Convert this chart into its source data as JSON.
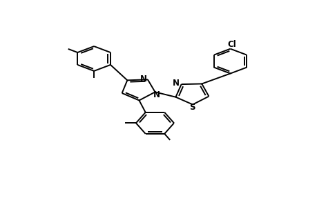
{
  "figsize": [
    4.6,
    3.0
  ],
  "dpi": 100,
  "bg_color": "#ffffff",
  "line_color": "#000000",
  "line_width": 1.4,
  "font_size": 8.5,
  "xlim": [
    0,
    10
  ],
  "ylim": [
    0,
    10
  ]
}
